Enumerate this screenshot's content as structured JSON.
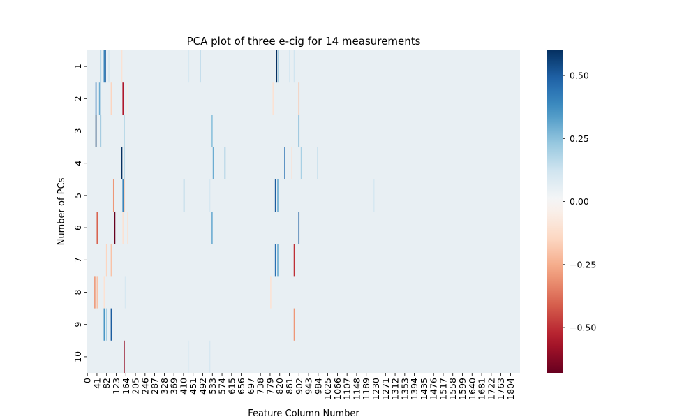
{
  "chart_data": {
    "type": "heatmap",
    "title": "PCA plot of three e-cig for 14 measurements",
    "xlabel": "Feature Column Number",
    "ylabel": "Number of PCs",
    "x_tick_labels": [
      "0",
      "41",
      "82",
      "123",
      "164",
      "205",
      "246",
      "287",
      "328",
      "369",
      "410",
      "451",
      "492",
      "533",
      "574",
      "615",
      "656",
      "697",
      "738",
      "779",
      "820",
      "861",
      "902",
      "943",
      "984",
      "1025",
      "1066",
      "1107",
      "1148",
      "1189",
      "1230",
      "1271",
      "1312",
      "1353",
      "1394",
      "1435",
      "1476",
      "1517",
      "1558",
      "1599",
      "1640",
      "1681",
      "1722",
      "1763",
      "1804"
    ],
    "y_tick_labels": [
      "1",
      "2",
      "3",
      "4",
      "5",
      "6",
      "7",
      "8",
      "9",
      "10"
    ],
    "n_features": 1845,
    "colorbar": {
      "colormap": "RdBu",
      "vmin": -0.68,
      "vmax": 0.6,
      "ticks": [
        0.5,
        0.25,
        0.0,
        -0.25,
        -0.5
      ],
      "tick_labels": [
        "0.50",
        "0.25",
        "0.00",
        "−0.25",
        "−0.50"
      ]
    },
    "background_value": 0.0,
    "stripes": [
      [
        1,
        55,
        0.25
      ],
      [
        1,
        70,
        0.4
      ],
      [
        1,
        75,
        0.5
      ],
      [
        1,
        90,
        0.1
      ],
      [
        1,
        145,
        -0.1
      ],
      [
        1,
        430,
        0.1
      ],
      [
        1,
        480,
        0.15
      ],
      [
        1,
        805,
        0.6
      ],
      [
        1,
        812,
        0.2
      ],
      [
        1,
        860,
        0.1
      ],
      [
        1,
        880,
        0.12
      ],
      [
        2,
        35,
        0.45
      ],
      [
        2,
        50,
        0.3
      ],
      [
        2,
        100,
        -0.15
      ],
      [
        2,
        150,
        -0.55
      ],
      [
        2,
        170,
        -0.05
      ],
      [
        2,
        790,
        -0.1
      ],
      [
        2,
        900,
        -0.2
      ],
      [
        3,
        35,
        0.6
      ],
      [
        3,
        55,
        0.3
      ],
      [
        3,
        155,
        0.2
      ],
      [
        3,
        530,
        0.25
      ],
      [
        3,
        900,
        0.3
      ],
      [
        4,
        145,
        0.6
      ],
      [
        4,
        155,
        0.2
      ],
      [
        4,
        535,
        0.3
      ],
      [
        4,
        585,
        0.25
      ],
      [
        4,
        840,
        0.45
      ],
      [
        4,
        870,
        -0.1
      ],
      [
        4,
        910,
        0.2
      ],
      [
        4,
        980,
        0.15
      ],
      [
        5,
        110,
        -0.3
      ],
      [
        5,
        150,
        0.4
      ],
      [
        5,
        155,
        -0.2
      ],
      [
        5,
        410,
        0.2
      ],
      [
        5,
        520,
        0.1
      ],
      [
        5,
        800,
        0.5
      ],
      [
        5,
        810,
        0.3
      ],
      [
        5,
        1220,
        0.1
      ],
      [
        6,
        40,
        -0.4
      ],
      [
        6,
        115,
        -0.68
      ],
      [
        6,
        150,
        -0.1
      ],
      [
        6,
        170,
        -0.1
      ],
      [
        6,
        530,
        0.3
      ],
      [
        6,
        900,
        0.5
      ],
      [
        7,
        80,
        -0.15
      ],
      [
        7,
        100,
        -0.2
      ],
      [
        7,
        800,
        0.45
      ],
      [
        7,
        810,
        0.3
      ],
      [
        7,
        880,
        -0.5
      ],
      [
        8,
        30,
        -0.3
      ],
      [
        8,
        40,
        -0.2
      ],
      [
        8,
        70,
        -0.1
      ],
      [
        8,
        160,
        0.1
      ],
      [
        8,
        780,
        -0.1
      ],
      [
        9,
        70,
        0.35
      ],
      [
        9,
        80,
        0.2
      ],
      [
        9,
        100,
        0.5
      ],
      [
        9,
        130,
        0.05
      ],
      [
        9,
        880,
        -0.3
      ],
      [
        10,
        155,
        -0.6
      ],
      [
        10,
        430,
        0.08
      ],
      [
        10,
        520,
        0.1
      ]
    ]
  }
}
